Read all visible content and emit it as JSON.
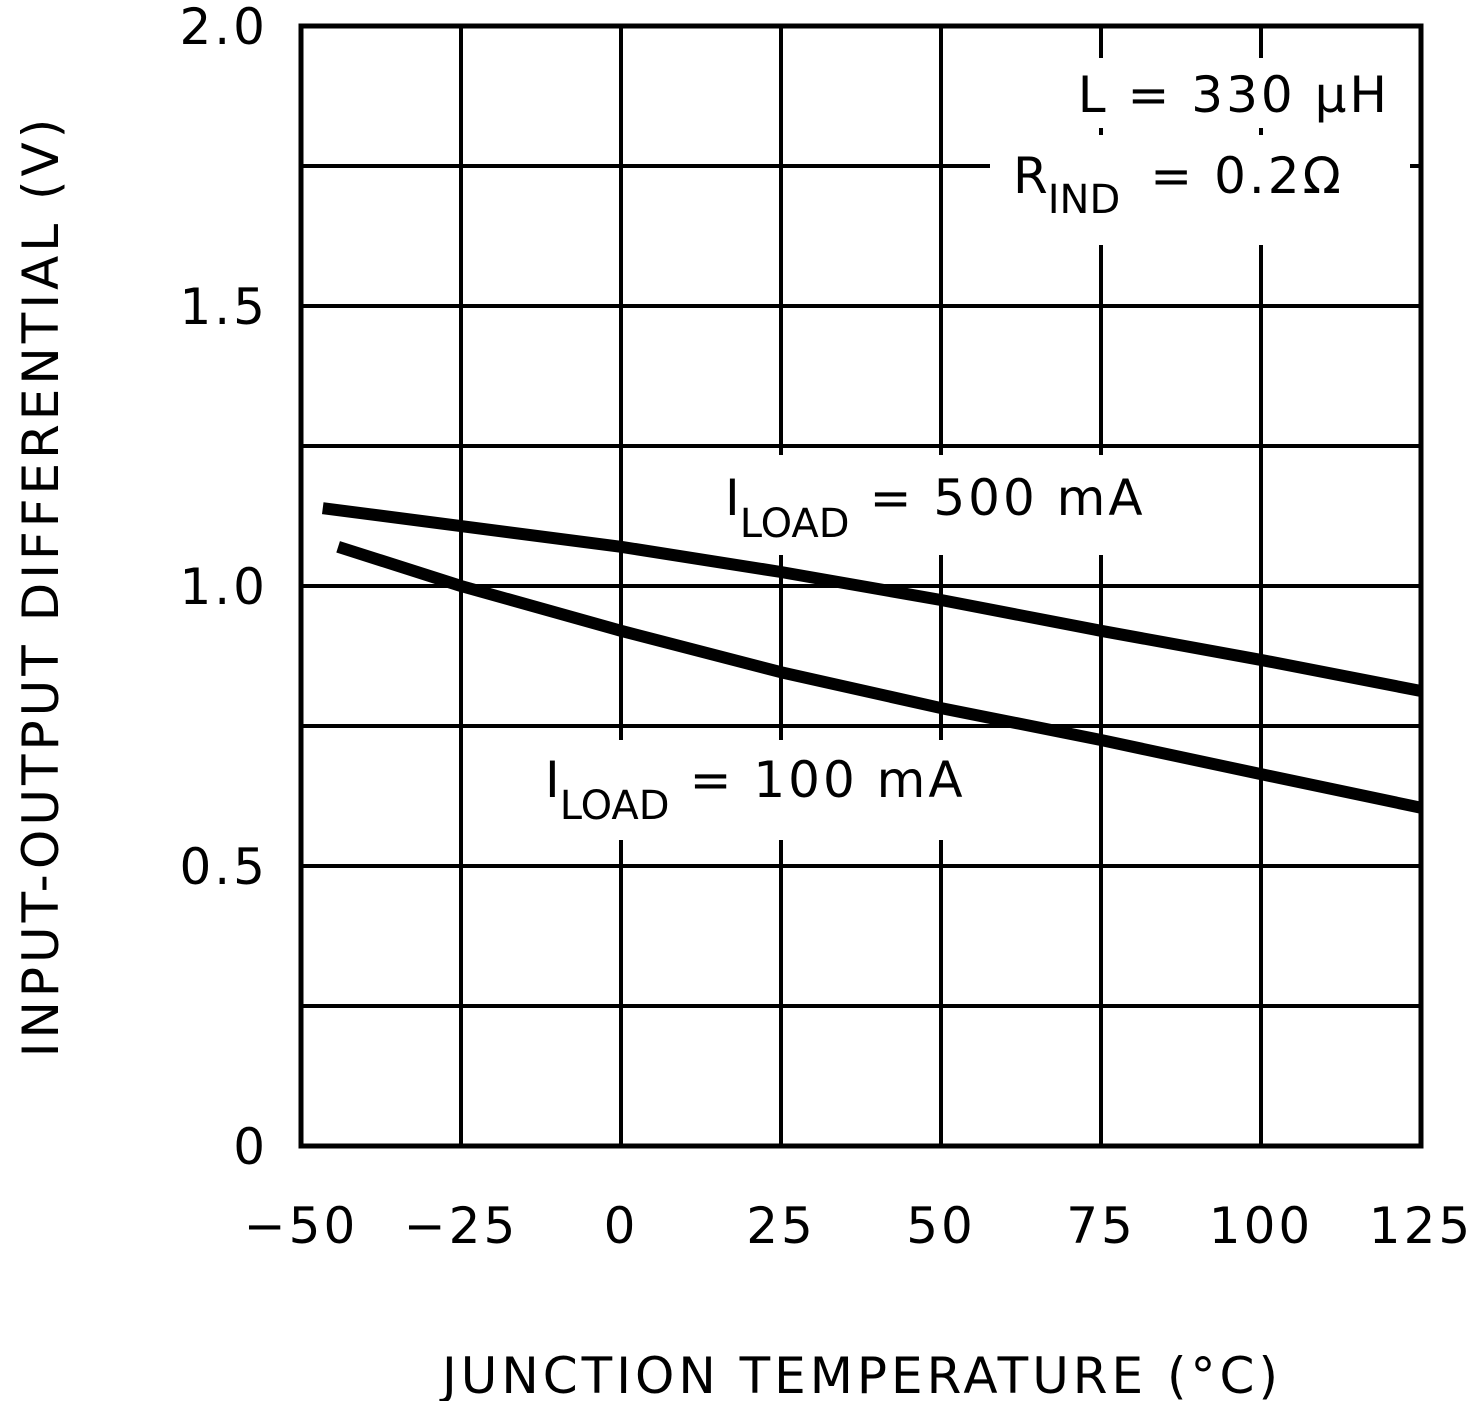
{
  "chart_data": {
    "type": "line",
    "title": "",
    "xlabel": "JUNCTION TEMPERATURE (°C)",
    "ylabel": "INPUT-OUTPUT DIFFERENTIAL (V)",
    "xlim": [
      -50,
      125
    ],
    "ylim": [
      0,
      2.0
    ],
    "xticks": [
      -50,
      -25,
      0,
      25,
      50,
      75,
      100,
      125
    ],
    "xtick_labels": [
      "−50",
      "−25",
      "0",
      "25",
      "50",
      "75",
      "100",
      "125"
    ],
    "yticks": [
      0,
      0.5,
      1.0,
      1.5,
      2.0
    ],
    "ytick_labels": [
      "0",
      "0.5",
      "1.0",
      "1.5",
      "2.0"
    ],
    "y_minor_grid_step": 0.25,
    "grid": true,
    "line_color": "#000000",
    "annotations": {
      "inductance": "L = 330 μH",
      "resistance_main": "R",
      "resistance_sub": "IND",
      "resistance_value": "=  0.2Ω"
    },
    "series": [
      {
        "name": "I_LOAD = 500 mA",
        "label_main": "I",
        "label_sub": "LOAD",
        "label_value": "= 500 mA",
        "x": [
          -46.6,
          0,
          25,
          50,
          75,
          100,
          125
        ],
        "y": [
          1.139,
          1.07,
          1.025,
          0.975,
          0.92,
          0.868,
          0.8125
        ]
      },
      {
        "name": "I_LOAD = 100 mA",
        "label_main": "I",
        "label_sub": "LOAD",
        "label_value": "= 100 mA",
        "x": [
          -44.2,
          -25,
          0,
          25,
          50,
          75,
          100,
          125
        ],
        "y": [
          1.07,
          1.0,
          0.92,
          0.846,
          0.782,
          0.725,
          0.664,
          0.604
        ]
      }
    ]
  }
}
